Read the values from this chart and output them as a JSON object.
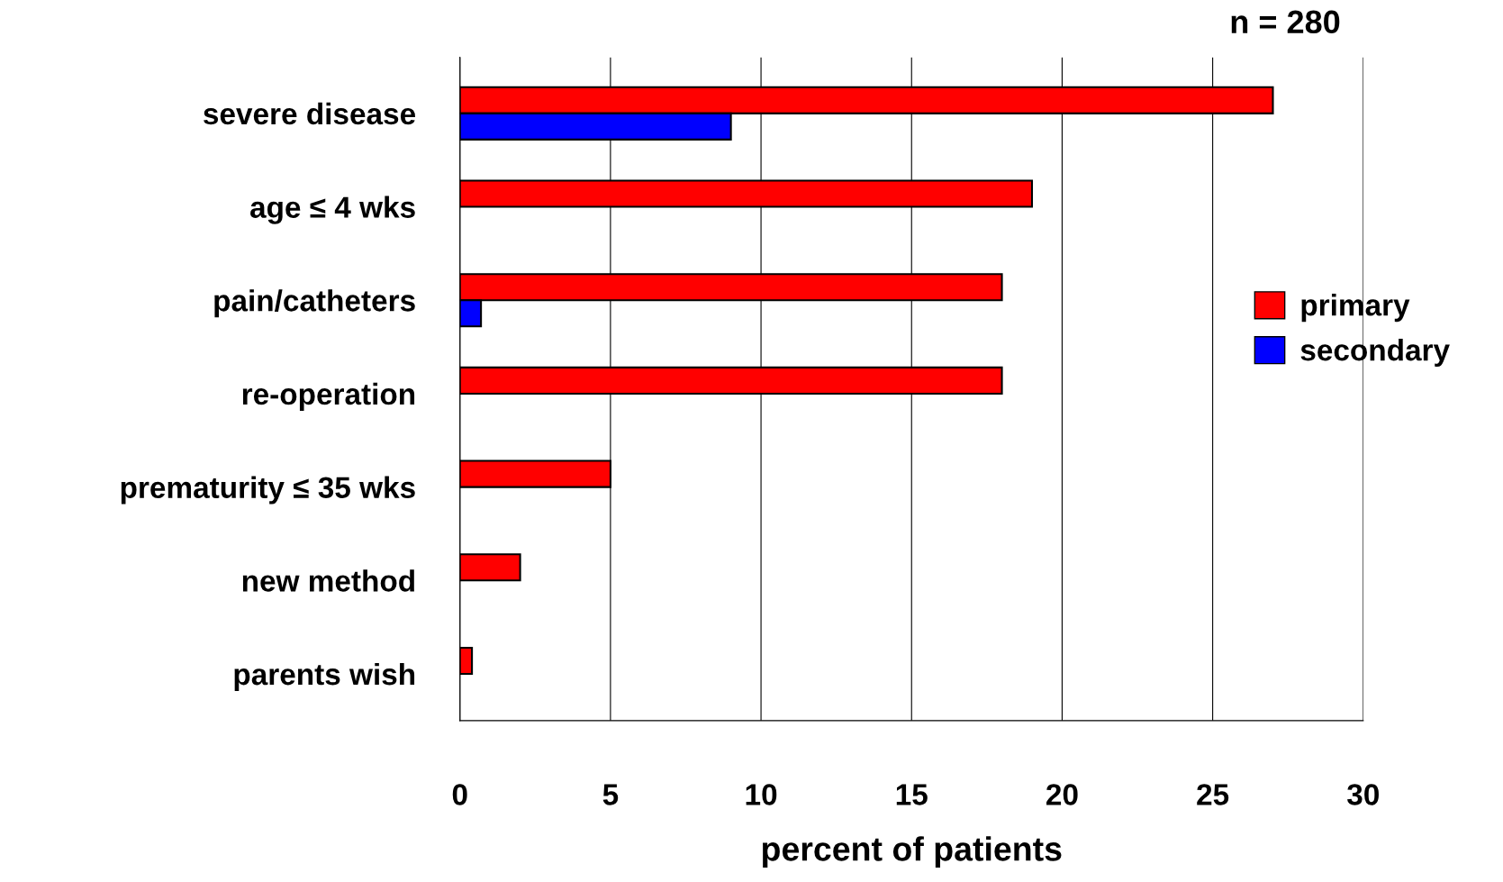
{
  "chart_data": {
    "type": "bar",
    "orientation": "horizontal",
    "categories": [
      "severe disease",
      "age ≤ 4 wks",
      "pain/catheters",
      "re-operation",
      "prematurity ≤ 35 wks",
      "new method",
      "parents wish"
    ],
    "series": [
      {
        "name": "primary",
        "color": "#ff0000",
        "values": [
          27,
          19,
          18,
          18,
          5,
          2,
          0.4
        ]
      },
      {
        "name": "secondary",
        "color": "#0000ff",
        "values": [
          9,
          null,
          0.7,
          null,
          null,
          null,
          null
        ]
      }
    ],
    "xlabel": "percent of patients",
    "xlim": [
      0,
      30
    ],
    "xticks": [
      0,
      5,
      10,
      15,
      20,
      25,
      30
    ],
    "grid": "x",
    "legend": "right",
    "annotations": [
      "n = 280"
    ]
  }
}
